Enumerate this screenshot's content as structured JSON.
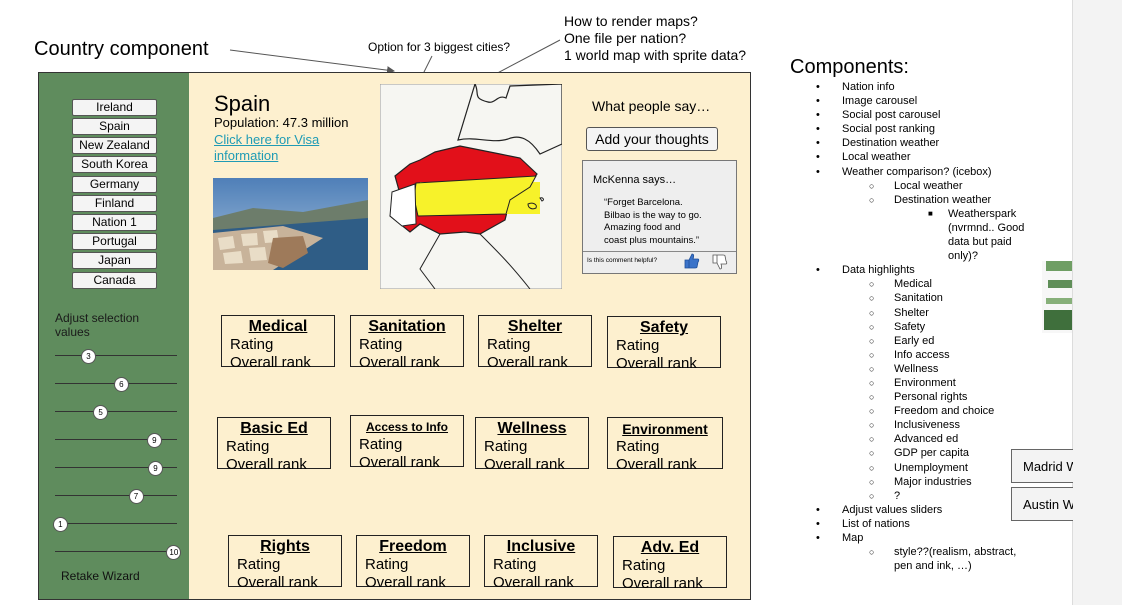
{
  "annotations": {
    "country_component": "Country component",
    "cities_option": "Option for 3 biggest cities?",
    "maps_q1": "How to render maps?",
    "maps_q2": "One file per nation?",
    "maps_q3": "1 world map with sprite data?"
  },
  "sidebar": {
    "nations": [
      "Ireland",
      "Spain",
      "New Zealand",
      "South Korea",
      "Germany",
      "Finland",
      "Nation 1",
      "Portugal",
      "Japan",
      "Canada"
    ],
    "adjust_label_1": "Adjust selection",
    "adjust_label_2": "values",
    "sliders": [
      {
        "value": "3",
        "fraction": 0.27
      },
      {
        "value": "6",
        "fraction": 0.54
      },
      {
        "value": "5",
        "fraction": 0.37
      },
      {
        "value": "9",
        "fraction": 0.81
      },
      {
        "value": "9",
        "fraction": 0.82
      },
      {
        "value": "7",
        "fraction": 0.66
      },
      {
        "value": "1",
        "fraction": 0.04
      },
      {
        "value": "10",
        "fraction": 0.97
      }
    ],
    "retake": "Retake Wizard"
  },
  "country": {
    "name": "Spain",
    "population": "Population: 47.3 million",
    "visa_link_1": "Click here for Visa",
    "visa_link_2": "information"
  },
  "social": {
    "heading": "What people say…",
    "add_button": "Add your thoughts",
    "author": "McKenna says…",
    "quote_lines": [
      "“Forget Barcelona.",
      "Bilbao is the way to go.",
      "Amazing food and",
      "coast plus mountains.”"
    ],
    "helpful": "Is this comment helpful?"
  },
  "cards": [
    {
      "title": "Medical",
      "rating": "Rating",
      "rank": "Overall rank"
    },
    {
      "title": "Sanitation",
      "rating": "Rating",
      "rank": "Overall rank"
    },
    {
      "title": "Shelter",
      "rating": "Rating",
      "rank": "Overall rank"
    },
    {
      "title": "Safety",
      "rating": "Rating",
      "rank": "Overall rank"
    },
    {
      "title": "Basic Ed",
      "rating": "Rating",
      "rank": "Overall rank"
    },
    {
      "title": "Access to Info",
      "rating": "Rating",
      "rank": "Overall rank"
    },
    {
      "title": "Wellness",
      "rating": "Rating",
      "rank": "Overall rank"
    },
    {
      "title": "Environment",
      "rating": "Rating",
      "rank": "Overall rank"
    },
    {
      "title": "Rights",
      "rating": "Rating",
      "rank": "Overall rank"
    },
    {
      "title": "Freedom",
      "rating": "Rating",
      "rank": "Overall rank"
    },
    {
      "title": "Inclusive",
      "rating": "Rating",
      "rank": "Overall rank"
    },
    {
      "title": "Adv. Ed",
      "rating": "Rating",
      "rank": "Overall rank"
    }
  ],
  "components": {
    "heading": "Components:",
    "items": [
      {
        "level": 1,
        "text": "Nation info"
      },
      {
        "level": 1,
        "text": "Image carousel"
      },
      {
        "level": 1,
        "text": "Social post carousel"
      },
      {
        "level": 1,
        "text": "Social post ranking"
      },
      {
        "level": 1,
        "text": "Destination weather"
      },
      {
        "level": 1,
        "text": "Local weather"
      },
      {
        "level": 1,
        "text": "Weather comparison? (icebox)"
      },
      {
        "level": 2,
        "text": "Local weather"
      },
      {
        "level": 2,
        "text": "Destination weather"
      },
      {
        "level": 3,
        "text": "Weatherspark (nvrmnd.. Good data but paid only)?"
      },
      {
        "level": 1,
        "text": "Data highlights"
      },
      {
        "level": 2,
        "text": "Medical"
      },
      {
        "level": 2,
        "text": "Sanitation"
      },
      {
        "level": 2,
        "text": "Shelter"
      },
      {
        "level": 2,
        "text": "Safety"
      },
      {
        "level": 2,
        "text": "Early ed"
      },
      {
        "level": 2,
        "text": "Info access"
      },
      {
        "level": 2,
        "text": "Wellness"
      },
      {
        "level": 2,
        "text": "Environment"
      },
      {
        "level": 2,
        "text": "Personal rights"
      },
      {
        "level": 2,
        "text": "Freedom and choice"
      },
      {
        "level": 2,
        "text": "Inclusiveness"
      },
      {
        "level": 2,
        "text": "Advanced ed"
      },
      {
        "level": 2,
        "text": "GDP per capita"
      },
      {
        "level": 2,
        "text": "Unemployment"
      },
      {
        "level": 2,
        "text": "Major industries"
      },
      {
        "level": 2,
        "text": "?"
      },
      {
        "level": 1,
        "text": "Adjust values sliders"
      },
      {
        "level": 1,
        "text": "List of nations"
      },
      {
        "level": 1,
        "text": "Map"
      },
      {
        "level": 2,
        "text": "style??(realism, abstract, pen and ink, …)"
      }
    ]
  },
  "weather_buttons": [
    "Madrid Weather",
    "Austin Weather"
  ],
  "colors": {
    "sidebar": "#5f8c5d",
    "main": "#fdf0cf",
    "link": "#1f9bb5",
    "flag_red": "#e2101a",
    "flag_yellow": "#f7f22a"
  }
}
